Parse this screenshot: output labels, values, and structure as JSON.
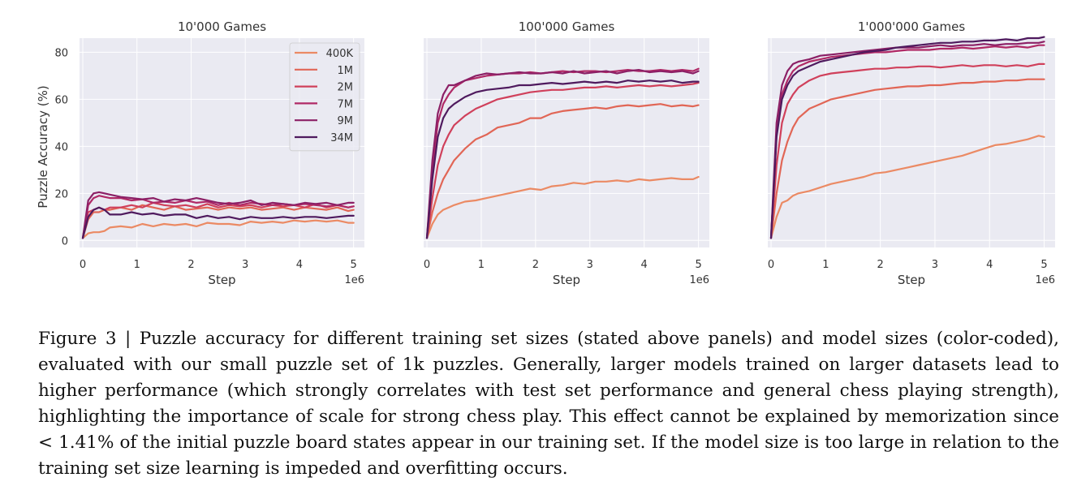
{
  "colors": {
    "background": "#ffffff",
    "plot_bg": "#eaeaf2",
    "grid": "#ffffff",
    "series": [
      "#eb8a64",
      "#e16656",
      "#d0405b",
      "#b02966",
      "#8c2066",
      "#4f1a5e"
    ]
  },
  "chart_data": [
    {
      "type": "line",
      "title": "10'000 Games",
      "xlabel": "Step",
      "ylabel": "Puzzle Accuracy (%)",
      "x_offset_label": "1e6",
      "xlim": [
        -0.06,
        5.2
      ],
      "ylim": [
        -3,
        86
      ],
      "xticks": [
        "0",
        "1",
        "2",
        "3",
        "4",
        "5"
      ],
      "yticks": [
        "0",
        "20",
        "40",
        "60",
        "80"
      ],
      "grid": true,
      "legend": {
        "position": "top-right",
        "entries": [
          "400K",
          "1M",
          "2M",
          "7M",
          "9M",
          "34M"
        ]
      },
      "x": [
        0,
        0.1,
        0.2,
        0.3,
        0.4,
        0.5,
        0.7,
        0.9,
        1.1,
        1.3,
        1.5,
        1.7,
        1.9,
        2.1,
        2.3,
        2.5,
        2.7,
        2.9,
        3.1,
        3.3,
        3.5,
        3.7,
        3.9,
        4.1,
        4.3,
        4.5,
        4.7,
        4.9,
        5.0
      ],
      "series": [
        {
          "name": "400K",
          "values": [
            1,
            3,
            3.5,
            3.5,
            4,
            5.5,
            6,
            5.5,
            7,
            6,
            7,
            6.5,
            7,
            6,
            7.5,
            7,
            7,
            6.5,
            8,
            7.5,
            8,
            7.5,
            8.5,
            8,
            8.5,
            8,
            8.5,
            7.5,
            7.5
          ]
        },
        {
          "name": "1M",
          "values": [
            1,
            9,
            12,
            12,
            13,
            13,
            14,
            13,
            15,
            14,
            13,
            14.5,
            13,
            13.5,
            14,
            13,
            14,
            13.5,
            14,
            13,
            13.5,
            14,
            13,
            14,
            13.5,
            13,
            14,
            12.5,
            13
          ]
        },
        {
          "name": "2M",
          "values": [
            1,
            12,
            13,
            14,
            13,
            14,
            14,
            15,
            14,
            16,
            15,
            14.5,
            15,
            14,
            15.5,
            14,
            15,
            14.5,
            15,
            14,
            15,
            14.5,
            15,
            14,
            15.5,
            14,
            15,
            14,
            14.5
          ]
        },
        {
          "name": "7M",
          "values": [
            1,
            15,
            18,
            19,
            18.5,
            18,
            18,
            17,
            17.5,
            16,
            16.5,
            16,
            17,
            16,
            16.5,
            15,
            16,
            15,
            16,
            15.5,
            15,
            15.5,
            15,
            15.5,
            15,
            14.5,
            15,
            14,
            14.5
          ]
        },
        {
          "name": "9M",
          "values": [
            1,
            17,
            20,
            20.5,
            20,
            19.5,
            18.5,
            18,
            17.5,
            18,
            16.5,
            17.5,
            17,
            18,
            17,
            16,
            15.5,
            16,
            17,
            15,
            16,
            15.5,
            15,
            16,
            15.5,
            16,
            15,
            16,
            16
          ]
        },
        {
          "name": "34M",
          "values": [
            1,
            10,
            13,
            14,
            13,
            11,
            11,
            12,
            11,
            11.5,
            10.5,
            11,
            11,
            9.5,
            10.5,
            9.5,
            10,
            9,
            10,
            9.5,
            9.5,
            10,
            9.5,
            10,
            10,
            9.5,
            10,
            10.5,
            10.5
          ]
        }
      ]
    },
    {
      "type": "line",
      "title": "100'000 Games",
      "xlabel": "Step",
      "ylabel": "",
      "x_offset_label": "1e6",
      "xlim": [
        -0.06,
        5.2
      ],
      "ylim": [
        -3,
        86
      ],
      "xticks": [
        "0",
        "1",
        "2",
        "3",
        "4",
        "5"
      ],
      "yticks": [],
      "grid": true,
      "x": [
        0,
        0.1,
        0.2,
        0.3,
        0.4,
        0.5,
        0.7,
        0.9,
        1.1,
        1.3,
        1.5,
        1.7,
        1.9,
        2.1,
        2.3,
        2.5,
        2.7,
        2.9,
        3.1,
        3.3,
        3.5,
        3.7,
        3.9,
        4.1,
        4.3,
        4.5,
        4.7,
        4.9,
        5.0
      ],
      "series": [
        {
          "name": "400K",
          "values": [
            1,
            7,
            11,
            13,
            14,
            15,
            16.5,
            17,
            18,
            19,
            20,
            21,
            22,
            21.5,
            23,
            23.5,
            24.5,
            24,
            25,
            25,
            25.5,
            25,
            26,
            25.5,
            26,
            26.5,
            26,
            26,
            27
          ]
        },
        {
          "name": "1M",
          "values": [
            1,
            12,
            20,
            26,
            30,
            34,
            39,
            43,
            45,
            48,
            49,
            50,
            52,
            52,
            54,
            55,
            55.5,
            56,
            56.5,
            56,
            57,
            57.5,
            57,
            57.5,
            58,
            57,
            57.5,
            57,
            57.5
          ]
        },
        {
          "name": "2M",
          "values": [
            1,
            18,
            32,
            40,
            45,
            49,
            53,
            56,
            58,
            60,
            61,
            62,
            63,
            63.5,
            64,
            64,
            64.5,
            65,
            65,
            65.5,
            65,
            65.5,
            66,
            65.5,
            66,
            65.5,
            66,
            66.5,
            67
          ]
        },
        {
          "name": "7M",
          "values": [
            1,
            30,
            50,
            58,
            62,
            65,
            68,
            69,
            70,
            70.5,
            71,
            71,
            71.5,
            71,
            71.5,
            72,
            71.5,
            72,
            72,
            71.5,
            72,
            72.5,
            72,
            72,
            72.5,
            72,
            72.5,
            72,
            73
          ]
        },
        {
          "name": "9M",
          "values": [
            1,
            34,
            54,
            62,
            66,
            66,
            68,
            70,
            71,
            70.5,
            71,
            71.5,
            71,
            71,
            71.5,
            71,
            72,
            71,
            71.5,
            72,
            71,
            72,
            72.5,
            71.5,
            72,
            71.5,
            72,
            71,
            72
          ]
        },
        {
          "name": "34M",
          "values": [
            1,
            26,
            44,
            52,
            56,
            58,
            61,
            63,
            64,
            64.5,
            65,
            66,
            66,
            66.5,
            67,
            66.5,
            67,
            67.5,
            67,
            67.5,
            67,
            68,
            67.5,
            68,
            67.5,
            68,
            67,
            67.5,
            67.5
          ]
        }
      ]
    },
    {
      "type": "line",
      "title": "1'000'000 Games",
      "xlabel": "Step",
      "ylabel": "",
      "x_offset_label": "1e6",
      "xlim": [
        -0.06,
        5.2
      ],
      "ylim": [
        -3,
        86
      ],
      "xticks": [
        "0",
        "1",
        "2",
        "3",
        "4",
        "5"
      ],
      "yticks": [],
      "grid": true,
      "x": [
        0,
        0.1,
        0.2,
        0.3,
        0.4,
        0.5,
        0.7,
        0.9,
        1.1,
        1.3,
        1.5,
        1.7,
        1.9,
        2.1,
        2.3,
        2.5,
        2.7,
        2.9,
        3.1,
        3.3,
        3.5,
        3.7,
        3.9,
        4.1,
        4.3,
        4.5,
        4.7,
        4.9,
        5.0
      ],
      "series": [
        {
          "name": "400K",
          "values": [
            1,
            10,
            16,
            17,
            19,
            20,
            21,
            22.5,
            24,
            25,
            26,
            27,
            28.5,
            29,
            30,
            31,
            32,
            33,
            34,
            35,
            36,
            37.5,
            39,
            40.5,
            41,
            42,
            43,
            44.5,
            44
          ]
        },
        {
          "name": "1M",
          "values": [
            1,
            20,
            34,
            42,
            48,
            52,
            56,
            58,
            60,
            61,
            62,
            63,
            64,
            64.5,
            65,
            65.5,
            65.5,
            66,
            66,
            66.5,
            67,
            67,
            67.5,
            67.5,
            68,
            68,
            68.5,
            68.5,
            68.5
          ]
        },
        {
          "name": "2M",
          "values": [
            1,
            32,
            50,
            58,
            62,
            65,
            68,
            70,
            71,
            71.5,
            72,
            72.5,
            73,
            73,
            73.5,
            73.5,
            74,
            74,
            73.5,
            74,
            74.5,
            74,
            74.5,
            74.5,
            74,
            74.5,
            74,
            75,
            75
          ]
        },
        {
          "name": "7M",
          "values": [
            1,
            45,
            62,
            68,
            72,
            74,
            76,
            77,
            78,
            78.5,
            79,
            79.5,
            80,
            80,
            80.5,
            81,
            81,
            81,
            81.5,
            81.5,
            82,
            81.5,
            82,
            82.5,
            82,
            82.5,
            82,
            83,
            83
          ]
        },
        {
          "name": "9M",
          "values": [
            1,
            50,
            66,
            72,
            75,
            76,
            77,
            78.5,
            79,
            79.5,
            80,
            80.5,
            81,
            81.5,
            82,
            82,
            82,
            82.5,
            83,
            82.5,
            83,
            83,
            83.5,
            83,
            83.5,
            83.5,
            84,
            84,
            84.5
          ]
        },
        {
          "name": "34M",
          "values": [
            1,
            44,
            60,
            66,
            70,
            72,
            74,
            76,
            77,
            78,
            79,
            80,
            80.5,
            81,
            82,
            82.5,
            83,
            83.5,
            84,
            84,
            84.5,
            84.5,
            85,
            85,
            85.5,
            85,
            86,
            86,
            86.5
          ]
        }
      ]
    }
  ],
  "caption": "Figure 3 | Puzzle accuracy for different training set sizes (stated above panels) and model sizes (color-coded), evaluated with our small puzzle set of 1k puzzles. Generally, larger models trained on larger datasets lead to higher performance (which strongly correlates with test set performance and general chess playing strength), highlighting the importance of scale for strong chess play. This effect cannot be explained by memorization since < 1.41% of the initial puzzle board states appear in our training set. If the model size is too large in relation to the training set size learning is impeded and overfitting occurs."
}
